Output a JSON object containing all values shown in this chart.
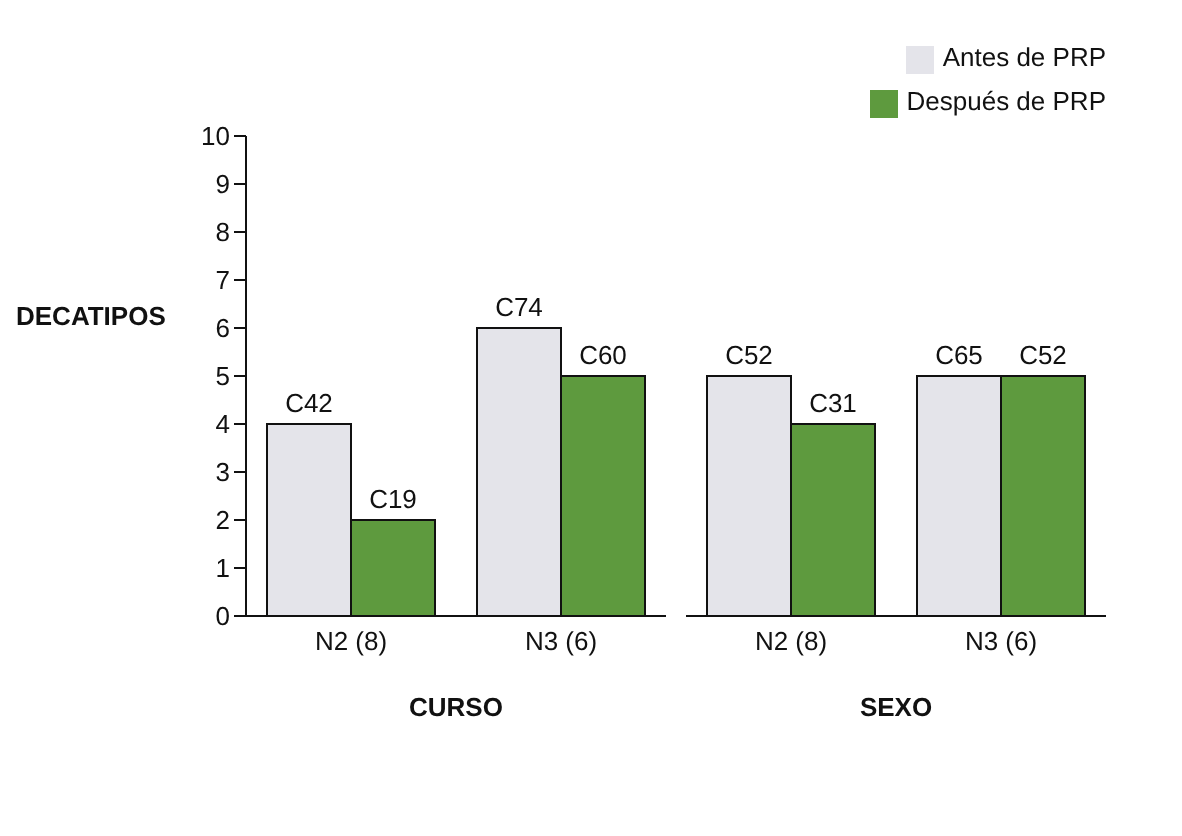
{
  "chart_data": [
    {
      "type": "bar",
      "ylabel": "DECATIPOS",
      "xlabel": "CURSO",
      "categories": [
        "N2 (8)",
        "N3 (6)"
      ],
      "ylim": [
        0,
        10
      ],
      "yticks": [
        0,
        1,
        2,
        3,
        4,
        5,
        6,
        7,
        8,
        9,
        10
      ],
      "grid": false,
      "legend": false,
      "series": [
        {
          "color": "#e4e4ea",
          "values": [
            4,
            6
          ],
          "value_labels": [
            "C42",
            "C74"
          ]
        },
        {
          "color": "#5e9a3e",
          "values": [
            2,
            5
          ],
          "value_labels": [
            "C19",
            "C60"
          ]
        }
      ]
    },
    {
      "type": "bar",
      "xlabel": "SEXO",
      "categories": [
        "N2 (8)",
        "N3 (6)"
      ],
      "ylim": [
        0,
        10
      ],
      "tick_labels": "x",
      "grid": false,
      "legend": "top right",
      "series": [
        {
          "name": "Antes de PRP",
          "color": "#e4e4ea",
          "values": [
            5,
            5
          ],
          "value_labels": [
            "C52",
            "C65"
          ]
        },
        {
          "name": "Después de PRP",
          "color": "#5e9a3e",
          "values": [
            4,
            5
          ],
          "value_labels": [
            "C31",
            "C52"
          ]
        }
      ]
    }
  ]
}
